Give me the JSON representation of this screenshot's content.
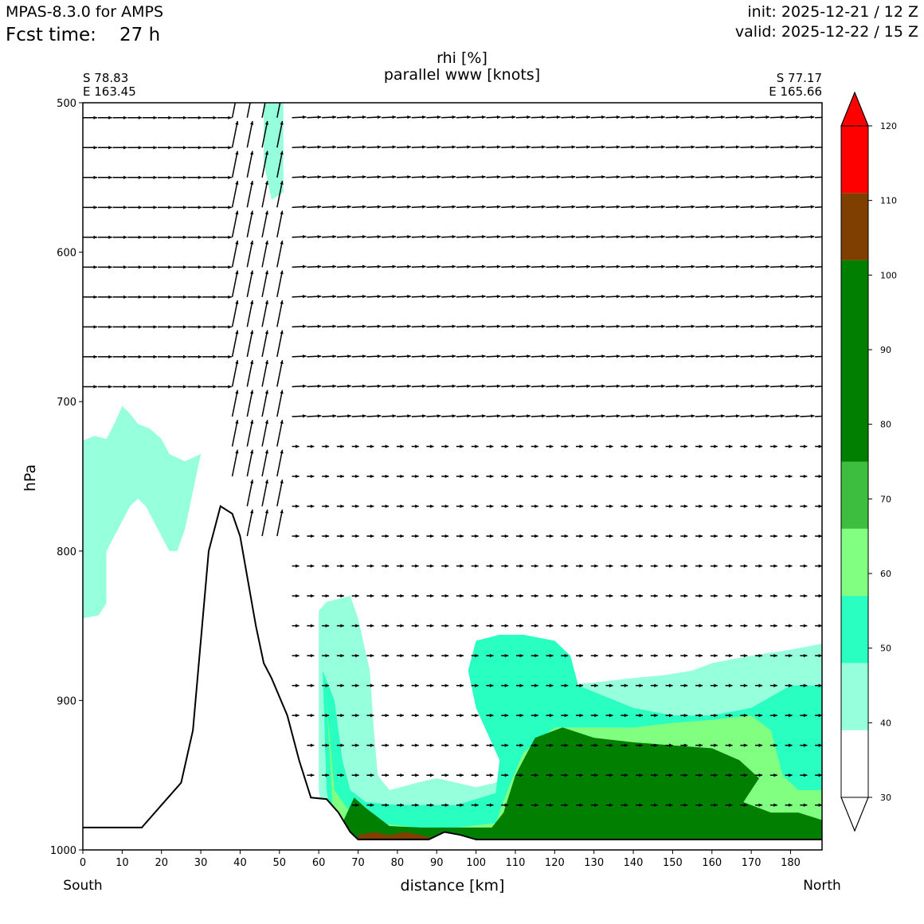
{
  "header": {
    "model": "MPAS-8.3.0 for AMPS",
    "fcst_label": "Fcst time:",
    "fcst_value": "27 h",
    "init": "init: 2025-12-21 / 12 Z",
    "valid": "valid: 2025-12-22 / 15 Z"
  },
  "chart_data": {
    "type": "cross-section",
    "title": "rhi [%]",
    "subtitle": "parallel www [knots]",
    "xlabel": "distance [km]",
    "ylabel": "hPa",
    "xlim": [
      0,
      188
    ],
    "ylim": [
      1000,
      500
    ],
    "x_ticks": [
      0,
      10,
      20,
      30,
      40,
      50,
      60,
      70,
      80,
      90,
      100,
      110,
      120,
      130,
      140,
      150,
      160,
      170,
      180
    ],
    "y_ticks": [
      500,
      600,
      700,
      800,
      900,
      1000
    ],
    "left_coord": {
      "lat": "S 78.83",
      "lon": "E 163.45"
    },
    "right_coord": {
      "lat": "S 77.17",
      "lon": "E 165.66"
    },
    "left_end": "South",
    "right_end": "North",
    "colorbar": {
      "ticks": [
        30,
        40,
        50,
        60,
        70,
        80,
        90,
        100,
        110,
        120
      ],
      "levels": [
        {
          "from": 30,
          "to": 39,
          "color": "#ffffff"
        },
        {
          "from": 39,
          "to": 48,
          "color": "#96ffdc"
        },
        {
          "from": 48,
          "to": 57,
          "color": "#28ffc0"
        },
        {
          "from": 57,
          "to": 66,
          "color": "#80ff80"
        },
        {
          "from": 66,
          "to": 75,
          "color": "#3ebe3e"
        },
        {
          "from": 75,
          "to": 102,
          "color": "#007f00"
        },
        {
          "from": 102,
          "to": 111,
          "color": "#7f3f00"
        },
        {
          "from": 111,
          "to": 120,
          "color": "#ff0000"
        }
      ]
    },
    "terrain": [
      [
        0,
        985
      ],
      [
        10,
        985
      ],
      [
        15,
        985
      ],
      [
        20,
        970
      ],
      [
        25,
        955
      ],
      [
        28,
        920
      ],
      [
        30,
        860
      ],
      [
        32,
        800
      ],
      [
        35,
        770
      ],
      [
        38,
        775
      ],
      [
        40,
        790
      ],
      [
        42,
        820
      ],
      [
        44,
        850
      ],
      [
        46,
        875
      ],
      [
        48,
        885
      ],
      [
        52,
        910
      ],
      [
        55,
        940
      ],
      [
        58,
        965
      ],
      [
        62,
        966
      ],
      [
        65,
        975
      ],
      [
        68,
        988
      ],
      [
        70,
        993
      ],
      [
        80,
        993
      ],
      [
        88,
        993
      ],
      [
        92,
        988
      ],
      [
        96,
        990
      ],
      [
        100,
        993
      ],
      [
        188,
        993
      ]
    ],
    "rhi_regions": [
      {
        "level": 40,
        "points": [
          [
            0,
            845
          ],
          [
            4,
            843
          ],
          [
            6,
            835
          ],
          [
            6,
            800
          ],
          [
            9,
            785
          ],
          [
            12,
            770
          ],
          [
            14,
            765
          ],
          [
            16,
            770
          ],
          [
            18,
            780
          ],
          [
            20,
            790
          ],
          [
            22,
            800
          ],
          [
            24,
            800
          ],
          [
            26,
            785
          ],
          [
            28,
            760
          ],
          [
            30,
            735
          ],
          [
            26,
            740
          ],
          [
            22,
            735
          ],
          [
            20,
            725
          ],
          [
            17,
            718
          ],
          [
            14,
            715
          ],
          [
            12,
            708
          ],
          [
            10,
            703
          ],
          [
            8,
            715
          ],
          [
            6,
            725
          ],
          [
            3,
            723
          ],
          [
            0,
            726
          ]
        ]
      },
      {
        "level": 40,
        "points": [
          [
            46,
            500
          ],
          [
            51,
            500
          ],
          [
            51,
            560
          ],
          [
            48,
            565
          ],
          [
            46,
            540
          ]
        ]
      },
      {
        "level": 40,
        "points": [
          [
            60,
            840
          ],
          [
            62,
            834
          ],
          [
            68,
            830
          ],
          [
            70,
            845
          ],
          [
            73,
            880
          ],
          [
            74,
            920
          ],
          [
            75,
            950
          ],
          [
            78,
            960
          ],
          [
            85,
            955
          ],
          [
            90,
            952
          ],
          [
            95,
            955
          ],
          [
            100,
            958
          ],
          [
            105,
            955
          ],
          [
            108,
            946
          ],
          [
            110,
            920
          ],
          [
            115,
            895
          ],
          [
            120,
            890
          ],
          [
            130,
            888
          ],
          [
            140,
            885
          ],
          [
            148,
            883
          ],
          [
            155,
            880
          ],
          [
            160,
            875
          ],
          [
            170,
            870
          ],
          [
            180,
            866
          ],
          [
            188,
            862
          ],
          [
            188,
            993
          ],
          [
            62,
            993
          ],
          [
            60,
            960
          ]
        ]
      },
      {
        "level": 50,
        "points": [
          [
            61,
            880
          ],
          [
            64,
            900
          ],
          [
            66,
            940
          ],
          [
            68,
            960
          ],
          [
            72,
            968
          ],
          [
            80,
            970
          ],
          [
            95,
            970
          ],
          [
            105,
            962
          ],
          [
            106,
            940
          ],
          [
            100,
            905
          ],
          [
            98,
            880
          ],
          [
            100,
            860
          ],
          [
            106,
            856
          ],
          [
            112,
            856
          ],
          [
            120,
            860
          ],
          [
            124,
            870
          ],
          [
            126,
            890
          ],
          [
            140,
            905
          ],
          [
            150,
            910
          ],
          [
            160,
            910
          ],
          [
            170,
            905
          ],
          [
            180,
            890
          ],
          [
            188,
            890
          ],
          [
            188,
            993
          ],
          [
            64,
            993
          ],
          [
            62,
            960
          ]
        ]
      },
      {
        "level": 60,
        "points": [
          [
            62,
            900
          ],
          [
            64,
            960
          ],
          [
            68,
            975
          ],
          [
            75,
            982
          ],
          [
            85,
            985
          ],
          [
            95,
            985
          ],
          [
            105,
            982
          ],
          [
            108,
            960
          ],
          [
            112,
            935
          ],
          [
            120,
            918
          ],
          [
            130,
            918
          ],
          [
            140,
            918
          ],
          [
            150,
            915
          ],
          [
            160,
            913
          ],
          [
            170,
            910
          ],
          [
            175,
            920
          ],
          [
            178,
            950
          ],
          [
            182,
            960
          ],
          [
            188,
            960
          ],
          [
            188,
            993
          ],
          [
            64,
            993
          ]
        ]
      },
      {
        "level": 80,
        "points": [
          [
            66,
            982
          ],
          [
            69,
            965
          ],
          [
            72,
            972
          ],
          [
            78,
            984
          ],
          [
            86,
            985
          ],
          [
            96,
            985
          ],
          [
            104,
            985
          ],
          [
            107,
            975
          ],
          [
            110,
            950
          ],
          [
            115,
            925
          ],
          [
            122,
            918
          ],
          [
            130,
            925
          ],
          [
            140,
            928
          ],
          [
            150,
            930
          ],
          [
            160,
            932
          ],
          [
            167,
            940
          ],
          [
            172,
            952
          ],
          [
            170,
            960
          ],
          [
            168,
            968
          ],
          [
            175,
            975
          ],
          [
            182,
            975
          ],
          [
            188,
            980
          ],
          [
            188,
            993
          ],
          [
            68,
            993
          ]
        ]
      },
      {
        "level": 110,
        "points": [
          [
            70,
            990
          ],
          [
            74,
            988
          ],
          [
            78,
            990
          ],
          [
            82,
            988
          ],
          [
            86,
            990
          ],
          [
            90,
            993
          ],
          [
            70,
            993
          ]
        ]
      }
    ],
    "wind_vectors": [
      {
        "x_range": [
          0,
          40
        ],
        "p_range": [
          500,
          700
        ],
        "u": 1.0,
        "w": 0.0,
        "speed": "moderate"
      },
      {
        "x_range": [
          35,
          50
        ],
        "p_range": [
          500,
          800
        ],
        "u": 0.2,
        "w": 1.0,
        "speed": "strong"
      },
      {
        "x_range": [
          50,
          188
        ],
        "p_range": [
          500,
          720
        ],
        "u": 1.0,
        "w": 0.05,
        "speed": "moderate"
      },
      {
        "x_range": [
          50,
          188
        ],
        "p_range": [
          720,
          990
        ],
        "u": 0.4,
        "w": 0.0,
        "speed": "weak"
      }
    ]
  }
}
